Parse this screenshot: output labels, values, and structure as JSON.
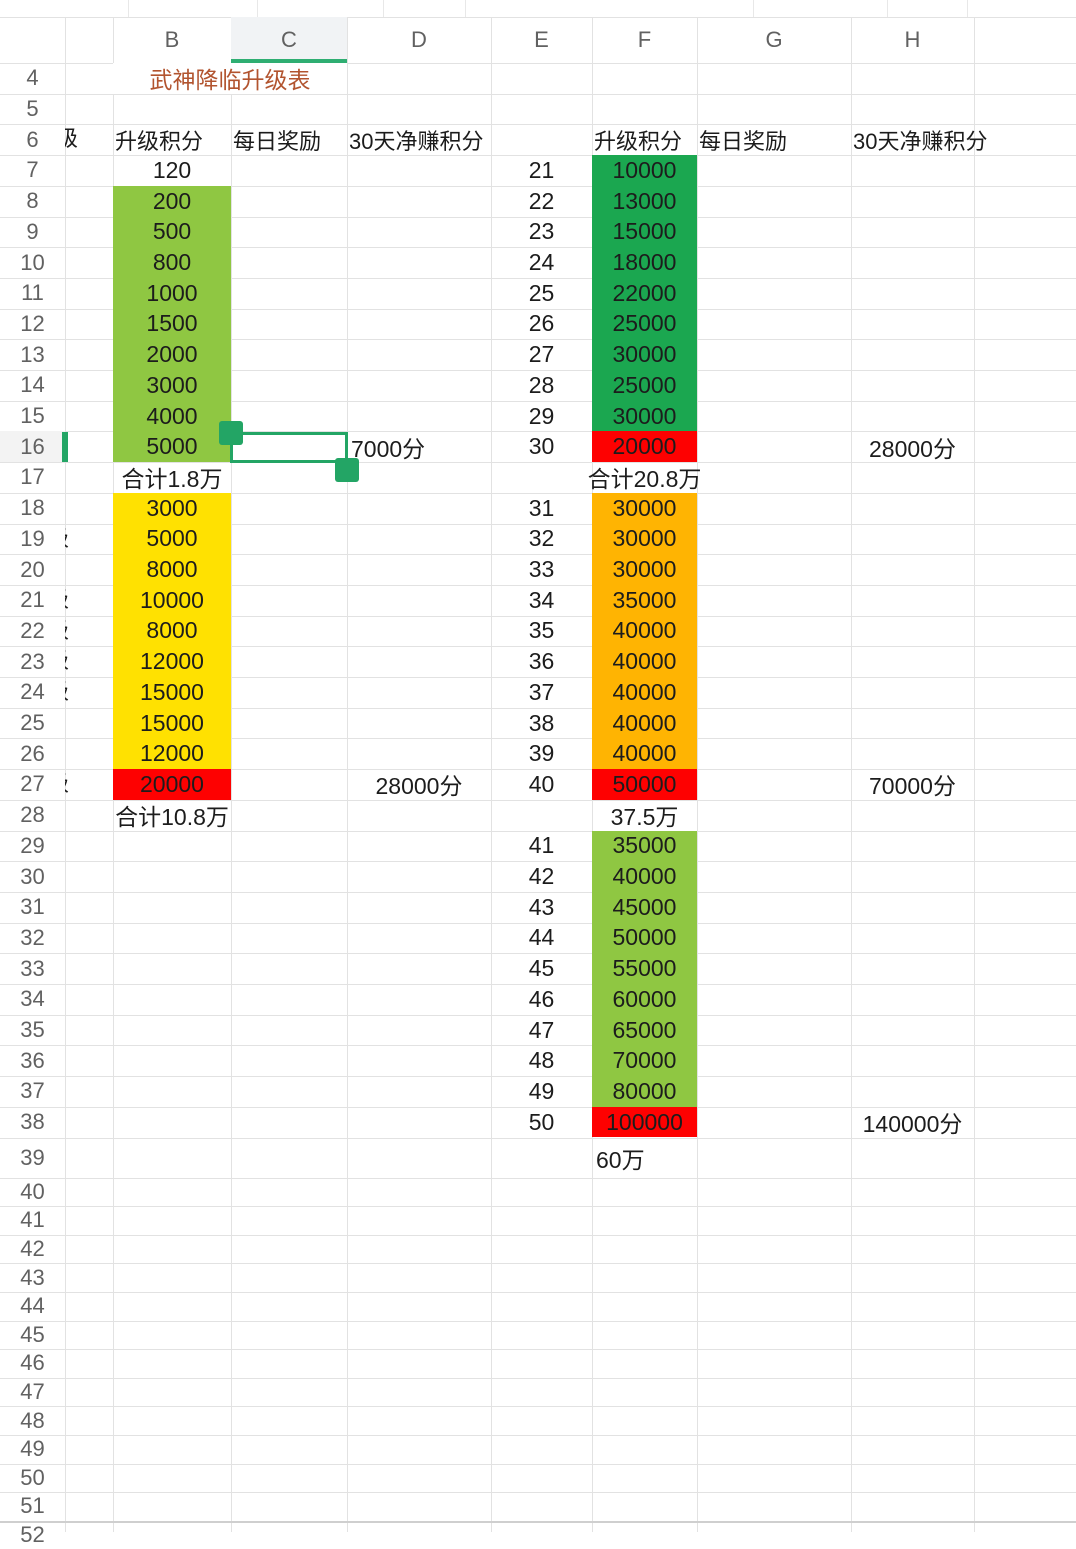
{
  "title": "武神降临升级表",
  "column_letters": [
    "B",
    "C",
    "D",
    "E",
    "F",
    "G",
    "H"
  ],
  "active_column": "C",
  "selected_row": "16",
  "rows_visible": {
    "from": 4,
    "to": 52
  },
  "colors": {
    "light_green": "#8fc742",
    "dark_green": "#1ba750",
    "yellow": "#ffe101",
    "orange": "#ffb402",
    "red": "#fe0101",
    "selection_green": "#23a565",
    "header_underline_green": "#2fae72",
    "title_text": "#b2542f",
    "grid_line": "#e2e2e2",
    "header_text": "#616161",
    "cell_text": "#1c1c1c",
    "active_col_header_bg": "#f1f3f5",
    "active_row_header_bg": "#f3f3f3"
  },
  "row6_headers": [
    {
      "c": "A",
      "t": "级"
    },
    {
      "c": "B",
      "t": "升级积分"
    },
    {
      "c": "C",
      "t": "每日奖励"
    },
    {
      "c": "D",
      "t": "30天净赚积分"
    },
    {
      "c": "F",
      "t": "升级积分"
    },
    {
      "c": "G",
      "t": "每日奖励"
    },
    {
      "c": "H",
      "t": "30天净赚积分"
    }
  ],
  "cells": [
    {
      "c": "B",
      "r": 7,
      "t": "120"
    },
    {
      "c": "B",
      "r": 8,
      "t": "200"
    },
    {
      "c": "B",
      "r": 9,
      "t": "500"
    },
    {
      "c": "B",
      "r": 10,
      "t": "800"
    },
    {
      "c": "B",
      "r": 11,
      "t": "1000"
    },
    {
      "c": "B",
      "r": 12,
      "t": "1500"
    },
    {
      "c": "B",
      "r": 13,
      "t": "2000"
    },
    {
      "c": "B",
      "r": 14,
      "t": "3000"
    },
    {
      "c": "B",
      "r": 15,
      "t": "4000"
    },
    {
      "c": "B",
      "r": 16,
      "t": "5000"
    },
    {
      "c": "B",
      "r": 17,
      "t": "合计1.8万"
    },
    {
      "c": "B",
      "r": 18,
      "t": "3000"
    },
    {
      "c": "B",
      "r": 19,
      "t": "5000"
    },
    {
      "c": "B",
      "r": 20,
      "t": "8000"
    },
    {
      "c": "B",
      "r": 21,
      "t": "10000"
    },
    {
      "c": "B",
      "r": 22,
      "t": "8000"
    },
    {
      "c": "B",
      "r": 23,
      "t": "12000"
    },
    {
      "c": "B",
      "r": 24,
      "t": "15000"
    },
    {
      "c": "B",
      "r": 25,
      "t": "15000"
    },
    {
      "c": "B",
      "r": 26,
      "t": "12000"
    },
    {
      "c": "B",
      "r": 27,
      "t": "20000"
    },
    {
      "c": "B",
      "r": 28,
      "t": "合计10.8万"
    },
    {
      "c": "D",
      "r": 16,
      "t": "7000分",
      "align": "left"
    },
    {
      "c": "D",
      "r": 27,
      "t": "28000分"
    },
    {
      "c": "E",
      "r": 7,
      "t": "21"
    },
    {
      "c": "E",
      "r": 8,
      "t": "22"
    },
    {
      "c": "E",
      "r": 9,
      "t": "23"
    },
    {
      "c": "E",
      "r": 10,
      "t": "24"
    },
    {
      "c": "E",
      "r": 11,
      "t": "25"
    },
    {
      "c": "E",
      "r": 12,
      "t": "26"
    },
    {
      "c": "E",
      "r": 13,
      "t": "27"
    },
    {
      "c": "E",
      "r": 14,
      "t": "28"
    },
    {
      "c": "E",
      "r": 15,
      "t": "29"
    },
    {
      "c": "E",
      "r": 16,
      "t": "30"
    },
    {
      "c": "E",
      "r": 18,
      "t": "31"
    },
    {
      "c": "E",
      "r": 19,
      "t": "32"
    },
    {
      "c": "E",
      "r": 20,
      "t": "33"
    },
    {
      "c": "E",
      "r": 21,
      "t": "34"
    },
    {
      "c": "E",
      "r": 22,
      "t": "35"
    },
    {
      "c": "E",
      "r": 23,
      "t": "36"
    },
    {
      "c": "E",
      "r": 24,
      "t": "37"
    },
    {
      "c": "E",
      "r": 25,
      "t": "38"
    },
    {
      "c": "E",
      "r": 26,
      "t": "39"
    },
    {
      "c": "E",
      "r": 27,
      "t": "40"
    },
    {
      "c": "E",
      "r": 29,
      "t": "41"
    },
    {
      "c": "E",
      "r": 30,
      "t": "42"
    },
    {
      "c": "E",
      "r": 31,
      "t": "43"
    },
    {
      "c": "E",
      "r": 32,
      "t": "44"
    },
    {
      "c": "E",
      "r": 33,
      "t": "45"
    },
    {
      "c": "E",
      "r": 34,
      "t": "46"
    },
    {
      "c": "E",
      "r": 35,
      "t": "47"
    },
    {
      "c": "E",
      "r": 36,
      "t": "48"
    },
    {
      "c": "E",
      "r": 37,
      "t": "49"
    },
    {
      "c": "E",
      "r": 38,
      "t": "50"
    },
    {
      "c": "F",
      "r": 7,
      "t": "10000"
    },
    {
      "c": "F",
      "r": 8,
      "t": "13000"
    },
    {
      "c": "F",
      "r": 9,
      "t": "15000"
    },
    {
      "c": "F",
      "r": 10,
      "t": "18000"
    },
    {
      "c": "F",
      "r": 11,
      "t": "22000"
    },
    {
      "c": "F",
      "r": 12,
      "t": "25000"
    },
    {
      "c": "F",
      "r": 13,
      "t": "30000"
    },
    {
      "c": "F",
      "r": 14,
      "t": "25000"
    },
    {
      "c": "F",
      "r": 15,
      "t": "30000"
    },
    {
      "c": "F",
      "r": 16,
      "t": "20000"
    },
    {
      "c": "F",
      "r": 17,
      "t": "合计20.8万"
    },
    {
      "c": "F",
      "r": 18,
      "t": "30000"
    },
    {
      "c": "F",
      "r": 19,
      "t": "30000"
    },
    {
      "c": "F",
      "r": 20,
      "t": "30000"
    },
    {
      "c": "F",
      "r": 21,
      "t": "35000"
    },
    {
      "c": "F",
      "r": 22,
      "t": "40000"
    },
    {
      "c": "F",
      "r": 23,
      "t": "40000"
    },
    {
      "c": "F",
      "r": 24,
      "t": "40000"
    },
    {
      "c": "F",
      "r": 25,
      "t": "40000"
    },
    {
      "c": "F",
      "r": 26,
      "t": "40000"
    },
    {
      "c": "F",
      "r": 27,
      "t": "50000"
    },
    {
      "c": "F",
      "r": 28,
      "t": "37.5万"
    },
    {
      "c": "F",
      "r": 29,
      "t": "35000"
    },
    {
      "c": "F",
      "r": 30,
      "t": "40000"
    },
    {
      "c": "F",
      "r": 31,
      "t": "45000"
    },
    {
      "c": "F",
      "r": 32,
      "t": "50000"
    },
    {
      "c": "F",
      "r": 33,
      "t": "55000"
    },
    {
      "c": "F",
      "r": 34,
      "t": "60000"
    },
    {
      "c": "F",
      "r": 35,
      "t": "65000"
    },
    {
      "c": "F",
      "r": 36,
      "t": "70000"
    },
    {
      "c": "F",
      "r": 37,
      "t": "80000"
    },
    {
      "c": "F",
      "r": 38,
      "t": "100000"
    },
    {
      "c": "F",
      "r": 39,
      "t": "60万",
      "align": "left"
    },
    {
      "c": "H",
      "r": 16,
      "t": "28000分"
    },
    {
      "c": "H",
      "r": 27,
      "t": "70000分"
    },
    {
      "c": "H",
      "r": 38,
      "t": "140000分"
    }
  ],
  "fills": [
    {
      "c": "B",
      "from": 8,
      "to": 16,
      "color": "light_green"
    },
    {
      "c": "B",
      "from": 18,
      "to": 26,
      "color": "yellow"
    },
    {
      "c": "B",
      "from": 27,
      "to": 27,
      "color": "red"
    },
    {
      "c": "F",
      "from": 7,
      "to": 15,
      "color": "dark_green"
    },
    {
      "c": "F",
      "from": 16,
      "to": 16,
      "color": "red"
    },
    {
      "c": "F",
      "from": 18,
      "to": 26,
      "color": "orange"
    },
    {
      "c": "F",
      "from": 27,
      "to": 27,
      "color": "red"
    },
    {
      "c": "F",
      "from": 29,
      "to": 37,
      "color": "light_green"
    },
    {
      "c": "F",
      "from": 38,
      "to": 38,
      "color": "red"
    }
  ],
  "a_column_clipped_fragment_rows": [
    19,
    21,
    22,
    23,
    24,
    27
  ],
  "selection": {
    "cell": "C16"
  }
}
